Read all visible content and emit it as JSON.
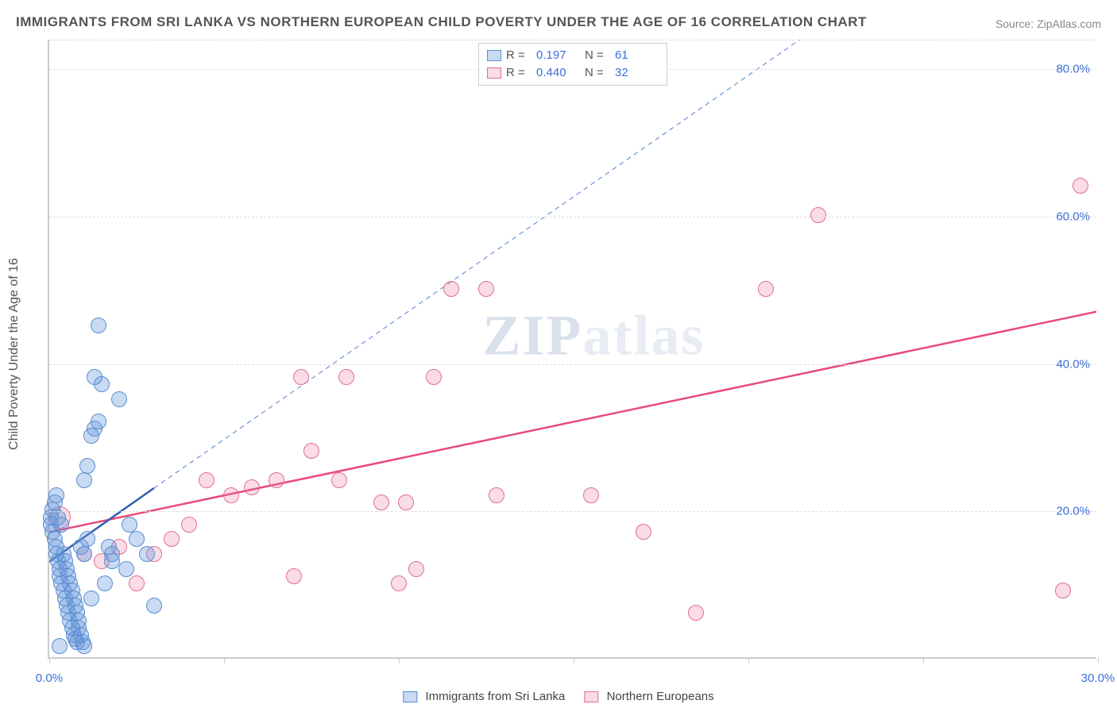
{
  "title": "IMMIGRANTS FROM SRI LANKA VS NORTHERN EUROPEAN CHILD POVERTY UNDER THE AGE OF 16 CORRELATION CHART",
  "source_label": "Source: ZipAtlas.com",
  "ylabel": "Child Poverty Under the Age of 16",
  "watermark_a": "ZIP",
  "watermark_b": "atlas",
  "chart": {
    "type": "scatter",
    "xlim": [
      0,
      30
    ],
    "ylim": [
      0,
      84
    ],
    "x_ticks": [
      0,
      5,
      10,
      15,
      20,
      25,
      30
    ],
    "x_tick_labels": {
      "0": "0.0%",
      "30": "30.0%"
    },
    "y_ticks": [
      20,
      40,
      60,
      80
    ],
    "y_tick_labels": [
      "20.0%",
      "40.0%",
      "60.0%",
      "80.0%"
    ],
    "background_color": "#ffffff",
    "grid_color": "#dddddd",
    "axis_color": "#cccccc",
    "tick_label_color": "#3b6fd6",
    "tick_fontsize": 15,
    "title_fontsize": 17,
    "title_color": "#555555",
    "ylabel_fontsize": 16,
    "point_radius": 10,
    "series": {
      "blue": {
        "label": "Immigrants from Sri Lanka",
        "fill": "rgba(100,150,220,0.35)",
        "stroke": "#5a8ed0",
        "R": "0.197",
        "N": "61",
        "trend": {
          "x1": 0,
          "y1": 13,
          "x2": 3.0,
          "y2": 23,
          "color": "#2f5fb0",
          "width": 2.5,
          "dash": "none"
        },
        "extrapolate": {
          "x1": 3.0,
          "y1": 23,
          "x2": 21.5,
          "y2": 84,
          "color": "#6a93d6",
          "width": 1.2,
          "dash": "6,5"
        },
        "points": [
          {
            "x": 0.05,
            "y": 19
          },
          {
            "x": 0.05,
            "y": 18
          },
          {
            "x": 0.1,
            "y": 17
          },
          {
            "x": 0.1,
            "y": 20
          },
          {
            "x": 0.15,
            "y": 16
          },
          {
            "x": 0.15,
            "y": 21
          },
          {
            "x": 0.2,
            "y": 22
          },
          {
            "x": 0.2,
            "y": 15
          },
          {
            "x": 0.2,
            "y": 14
          },
          {
            "x": 0.25,
            "y": 19
          },
          {
            "x": 0.25,
            "y": 13
          },
          {
            "x": 0.3,
            "y": 12
          },
          {
            "x": 0.3,
            "y": 11
          },
          {
            "x": 0.35,
            "y": 18
          },
          {
            "x": 0.35,
            "y": 10
          },
          {
            "x": 0.4,
            "y": 9
          },
          {
            "x": 0.4,
            "y": 14
          },
          {
            "x": 0.45,
            "y": 8
          },
          {
            "x": 0.45,
            "y": 13
          },
          {
            "x": 0.5,
            "y": 7
          },
          {
            "x": 0.5,
            "y": 12
          },
          {
            "x": 0.55,
            "y": 6
          },
          {
            "x": 0.55,
            "y": 11
          },
          {
            "x": 0.6,
            "y": 5
          },
          {
            "x": 0.6,
            "y": 10
          },
          {
            "x": 0.65,
            "y": 4
          },
          {
            "x": 0.65,
            "y": 9
          },
          {
            "x": 0.7,
            "y": 3
          },
          {
            "x": 0.7,
            "y": 8
          },
          {
            "x": 0.75,
            "y": 2.5
          },
          {
            "x": 0.75,
            "y": 7
          },
          {
            "x": 0.8,
            "y": 2
          },
          {
            "x": 0.8,
            "y": 6
          },
          {
            "x": 0.85,
            "y": 5
          },
          {
            "x": 0.85,
            "y": 4
          },
          {
            "x": 0.9,
            "y": 3
          },
          {
            "x": 0.9,
            "y": 15
          },
          {
            "x": 0.95,
            "y": 2
          },
          {
            "x": 1.0,
            "y": 14
          },
          {
            "x": 1.0,
            "y": 24
          },
          {
            "x": 1.1,
            "y": 16
          },
          {
            "x": 1.1,
            "y": 26
          },
          {
            "x": 1.2,
            "y": 30
          },
          {
            "x": 1.2,
            "y": 8
          },
          {
            "x": 1.3,
            "y": 31
          },
          {
            "x": 1.3,
            "y": 38
          },
          {
            "x": 1.4,
            "y": 32
          },
          {
            "x": 1.4,
            "y": 45
          },
          {
            "x": 1.5,
            "y": 37
          },
          {
            "x": 1.6,
            "y": 10
          },
          {
            "x": 1.7,
            "y": 15
          },
          {
            "x": 1.8,
            "y": 13
          },
          {
            "x": 1.8,
            "y": 14
          },
          {
            "x": 2.0,
            "y": 35
          },
          {
            "x": 2.2,
            "y": 12
          },
          {
            "x": 2.3,
            "y": 18
          },
          {
            "x": 2.5,
            "y": 16
          },
          {
            "x": 2.8,
            "y": 14
          },
          {
            "x": 3.0,
            "y": 7
          },
          {
            "x": 1.0,
            "y": 1.5
          },
          {
            "x": 0.3,
            "y": 1.5
          }
        ]
      },
      "pink": {
        "label": "Northern Europeans",
        "fill": "rgba(235,130,160,0.28)",
        "stroke": "#e07090",
        "R": "0.440",
        "N": "32",
        "trend": {
          "x1": 0,
          "y1": 17,
          "x2": 30,
          "y2": 47,
          "color": "#e94a7a",
          "width": 2.5,
          "dash": "none"
        },
        "points": [
          {
            "x": 0.3,
            "y": 19,
            "r": 14
          },
          {
            "x": 1.0,
            "y": 14
          },
          {
            "x": 1.5,
            "y": 13
          },
          {
            "x": 2.0,
            "y": 15
          },
          {
            "x": 2.5,
            "y": 10
          },
          {
            "x": 3.0,
            "y": 14
          },
          {
            "x": 3.5,
            "y": 16
          },
          {
            "x": 4.0,
            "y": 18
          },
          {
            "x": 4.5,
            "y": 24
          },
          {
            "x": 5.2,
            "y": 22
          },
          {
            "x": 5.8,
            "y": 23
          },
          {
            "x": 6.5,
            "y": 24
          },
          {
            "x": 7.0,
            "y": 11
          },
          {
            "x": 7.5,
            "y": 28
          },
          {
            "x": 7.2,
            "y": 38
          },
          {
            "x": 8.3,
            "y": 24
          },
          {
            "x": 8.5,
            "y": 38
          },
          {
            "x": 9.5,
            "y": 21
          },
          {
            "x": 10.2,
            "y": 21
          },
          {
            "x": 10.5,
            "y": 12
          },
          {
            "x": 11.0,
            "y": 38
          },
          {
            "x": 11.5,
            "y": 50
          },
          {
            "x": 12.5,
            "y": 50
          },
          {
            "x": 12.8,
            "y": 22
          },
          {
            "x": 15.5,
            "y": 22
          },
          {
            "x": 17.0,
            "y": 17
          },
          {
            "x": 18.5,
            "y": 6
          },
          {
            "x": 20.5,
            "y": 50
          },
          {
            "x": 22.0,
            "y": 60
          },
          {
            "x": 29.0,
            "y": 9
          },
          {
            "x": 29.5,
            "y": 64
          },
          {
            "x": 10.0,
            "y": 10
          }
        ]
      }
    }
  },
  "legend_top": {
    "r_label": "R  =",
    "n_label": "N  ="
  }
}
